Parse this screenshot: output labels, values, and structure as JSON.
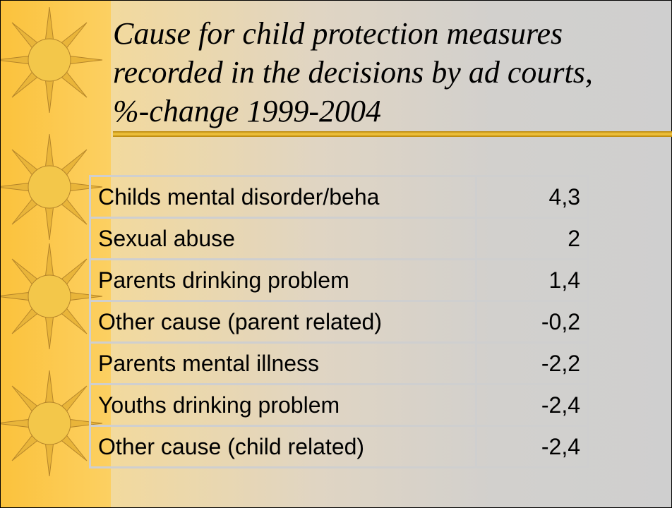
{
  "slide": {
    "title_lines": [
      "Cause for child protection measures",
      "recorded in the decisions by ad courts,",
      "%-change 1999-2004"
    ],
    "table": {
      "rows": [
        [
          "Childs mental disorder/beha",
          "4,3"
        ],
        [
          "Sexual abuse",
          "2"
        ],
        [
          "Parents drinking problem",
          "1,4"
        ],
        [
          "Other cause (parent related)",
          "-0,2"
        ],
        [
          "Parents mental illness",
          "-2,2"
        ],
        [
          "Youths drinking problem",
          "-2,4"
        ],
        [
          "Other cause (child related)",
          "-2,4"
        ]
      ]
    }
  }
}
